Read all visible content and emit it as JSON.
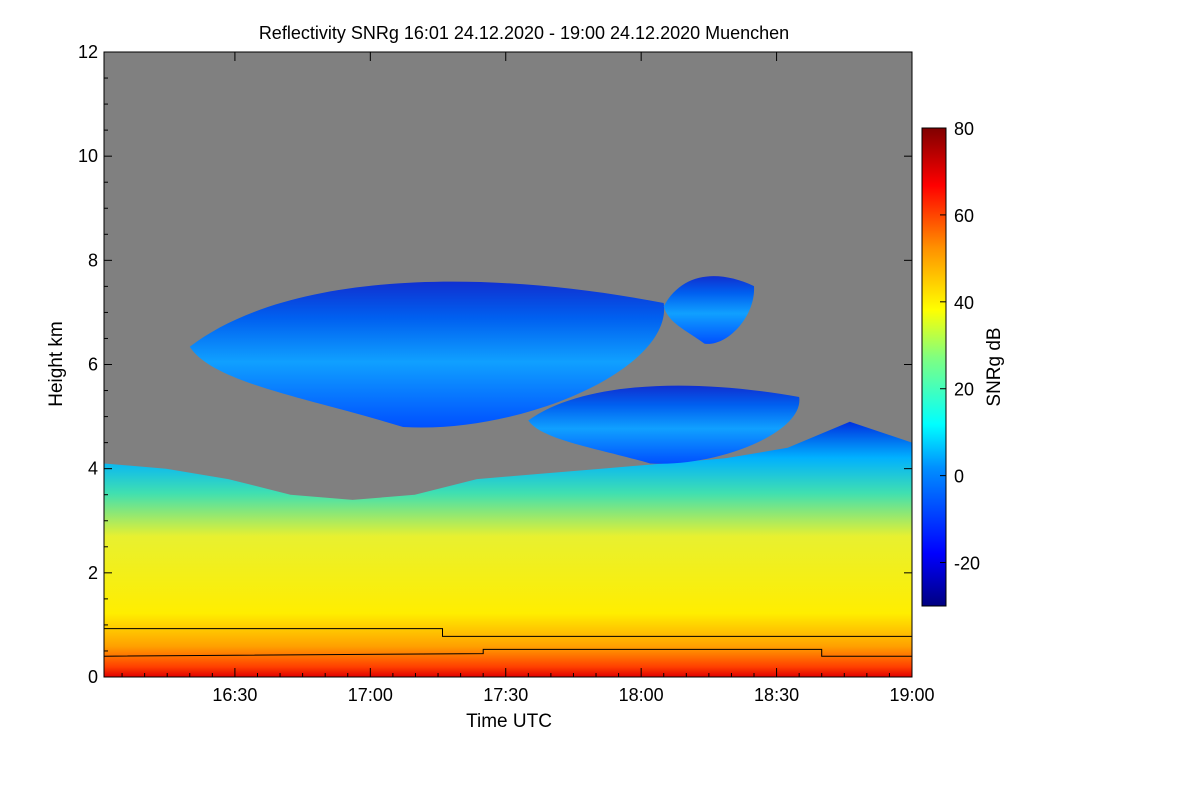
{
  "chart_data": {
    "type": "heatmap",
    "title": "Reflectivity SNRg   16:01 24.12.2020 - 19:00 24.12.2020 Muenchen",
    "xlabel": "Time UTC",
    "ylabel": "Height km",
    "x_range": [
      "16:01",
      "19:00"
    ],
    "x_ticks": [
      "16:30",
      "17:00",
      "17:30",
      "18:00",
      "18:30",
      "19:00"
    ],
    "ylim": [
      0,
      12
    ],
    "y_ticks": [
      "0",
      "2",
      "4",
      "6",
      "8",
      "10",
      "12"
    ],
    "colorbar": {
      "label": "SNRg dB",
      "range": [
        -30,
        80
      ],
      "ticks": [
        "-20",
        "0",
        "20",
        "40",
        "60",
        "80"
      ]
    },
    "background_color": "#808080",
    "colors": {
      "low": "#00008f",
      "blue": "#0040ff",
      "cyan": "#00ffff",
      "yellow": "#ffff00",
      "orange": "#ff8000",
      "red": "#ff0000",
      "high": "#800000"
    },
    "echo_layers": [
      {
        "name": "precipitation",
        "top_km": [
          4.1,
          4.0,
          3.8,
          3.5,
          3.4,
          3.5,
          3.8,
          3.9,
          4.0,
          4.1,
          4.2,
          4.4,
          4.9,
          4.5
        ]
      },
      {
        "name": "upper-cloud-1",
        "base_km": 4.8,
        "top_km": 7.6,
        "time_from": "16:20",
        "time_to": "18:05"
      },
      {
        "name": "upper-cloud-2",
        "base_km": 4.1,
        "top_km": 5.6,
        "time_from": "17:35",
        "time_to": "18:35"
      },
      {
        "name": "upper-cloud-3",
        "base_km": 6.4,
        "top_km": 7.7,
        "time_from": "18:05",
        "time_to": "18:25"
      }
    ],
    "lines": [
      {
        "name": "upper-step-line",
        "points": [
          [
            "16:01",
            0.93
          ],
          [
            "17:16",
            0.93
          ],
          [
            "17:16",
            0.78
          ],
          [
            "19:00",
            0.78
          ]
        ]
      },
      {
        "name": "lower-line",
        "points": [
          [
            "16:01",
            0.4
          ],
          [
            "17:25",
            0.45
          ],
          [
            "17:25",
            0.53
          ],
          [
            "18:40",
            0.53
          ],
          [
            "18:40",
            0.4
          ],
          [
            "19:00",
            0.4
          ]
        ]
      }
    ]
  }
}
